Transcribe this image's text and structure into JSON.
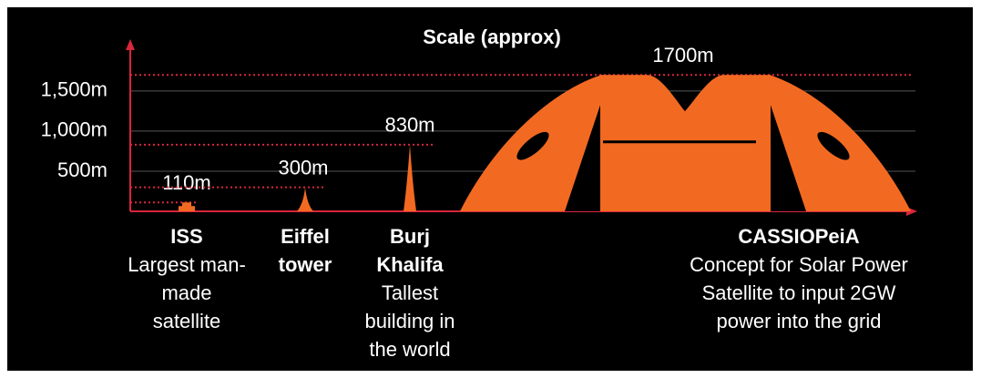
{
  "chart_data": {
    "type": "bar",
    "title": "Scale (approx)",
    "categories": [
      "ISS",
      "Eiffel tower",
      "Burj Khalifa",
      "CASSIOPeiA"
    ],
    "descriptions": [
      "Largest man-made satellite",
      null,
      "Tallest building in the world",
      "Concept for Solar Power Satellite to input 2GW power into the grid"
    ],
    "values": [
      110,
      300,
      830,
      1700
    ],
    "value_labels": [
      "110m",
      "300m",
      "830m",
      "1700m"
    ],
    "ylim": [
      0,
      2100
    ],
    "yticks": [
      {
        "value": 500,
        "label": "500m"
      },
      {
        "value": 1000,
        "label": "1,000m"
      },
      {
        "value": 1500,
        "label": "1,500m"
      }
    ],
    "grid": true,
    "color": "#f26a22",
    "axis_color": "#d7263d"
  }
}
